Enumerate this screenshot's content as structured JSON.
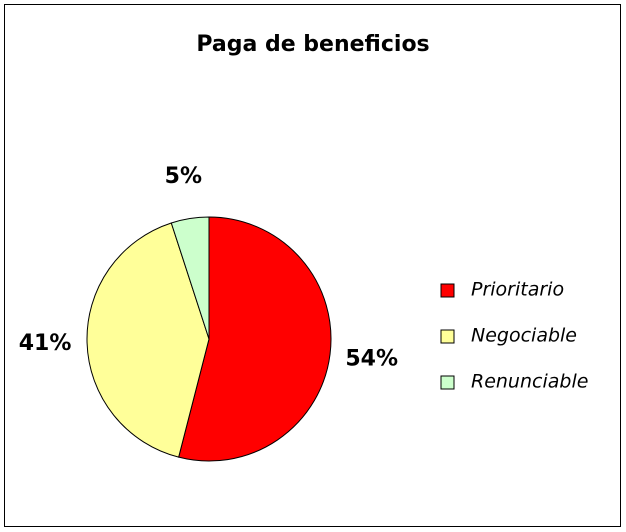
{
  "chart_data": {
    "type": "pie",
    "title": "Paga de beneficios",
    "categories": [
      "Prioritario",
      "Negociable",
      "Renunciable"
    ],
    "values": [
      54,
      41,
      5
    ],
    "value_labels": [
      "54%",
      "41%",
      "5%"
    ],
    "colors": [
      "#ff0000",
      "#ffff99",
      "#ccffcc"
    ],
    "legend": "right"
  }
}
